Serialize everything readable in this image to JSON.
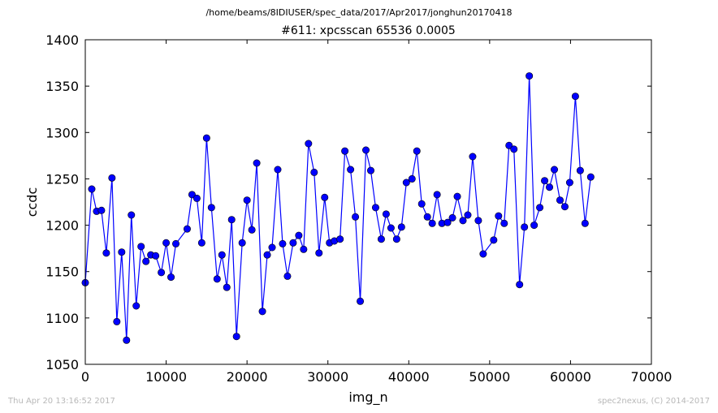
{
  "header": {
    "path": "/home/beams/8IDIUSER/spec_data/2017/Apr2017/jonghun20170418"
  },
  "footer": {
    "timestamp": "Thu Apr 20 13:16:52 2017",
    "credit": "spec2nexus, (C) 2014-2017"
  },
  "chart_data": {
    "type": "line",
    "title": "#611: xpcsscan 65536 0.0005",
    "xlabel": "img_n",
    "ylabel": "ccdc",
    "xlim": [
      0,
      70000
    ],
    "ylim": [
      1050,
      1400
    ],
    "xticks": [
      0,
      10000,
      20000,
      30000,
      40000,
      50000,
      60000,
      70000
    ],
    "yticks": [
      1050,
      1100,
      1150,
      1200,
      1250,
      1300,
      1350,
      1400
    ],
    "grid": false,
    "legend": "none",
    "colors": {
      "line": "#0000ff",
      "marker": "#0000ff",
      "marker_edge": "#000000"
    },
    "series": [
      {
        "points": [
          [
            0,
            1138
          ],
          [
            800,
            1239
          ],
          [
            1400,
            1215
          ],
          [
            2000,
            1216
          ],
          [
            2600,
            1170
          ],
          [
            3300,
            1251
          ],
          [
            3900,
            1096
          ],
          [
            4500,
            1171
          ],
          [
            5100,
            1076
          ],
          [
            5700,
            1211
          ],
          [
            6300,
            1113
          ],
          [
            6900,
            1177
          ],
          [
            7500,
            1161
          ],
          [
            8100,
            1168
          ],
          [
            8700,
            1167
          ],
          [
            9400,
            1149
          ],
          [
            10000,
            1181
          ],
          [
            10600,
            1144
          ],
          [
            11200,
            1180
          ],
          [
            12600,
            1196
          ],
          [
            13200,
            1233
          ],
          [
            13800,
            1229
          ],
          [
            14400,
            1181
          ],
          [
            15000,
            1294
          ],
          [
            15600,
            1219
          ],
          [
            16300,
            1142
          ],
          [
            16900,
            1168
          ],
          [
            17500,
            1133
          ],
          [
            18100,
            1206
          ],
          [
            18700,
            1080
          ],
          [
            19400,
            1181
          ],
          [
            20000,
            1227
          ],
          [
            20600,
            1195
          ],
          [
            21200,
            1267
          ],
          [
            21900,
            1107
          ],
          [
            22500,
            1168
          ],
          [
            23100,
            1176
          ],
          [
            23800,
            1260
          ],
          [
            24400,
            1180
          ],
          [
            25000,
            1145
          ],
          [
            25700,
            1181
          ],
          [
            26400,
            1189
          ],
          [
            27000,
            1174
          ],
          [
            27600,
            1288
          ],
          [
            28300,
            1257
          ],
          [
            28900,
            1170
          ],
          [
            29600,
            1230
          ],
          [
            30200,
            1181
          ],
          [
            30800,
            1183
          ],
          [
            31500,
            1185
          ],
          [
            32100,
            1280
          ],
          [
            32800,
            1260
          ],
          [
            33400,
            1209
          ],
          [
            34000,
            1118
          ],
          [
            34700,
            1281
          ],
          [
            35300,
            1259
          ],
          [
            35900,
            1219
          ],
          [
            36600,
            1185
          ],
          [
            37200,
            1212
          ],
          [
            37800,
            1197
          ],
          [
            38500,
            1185
          ],
          [
            39100,
            1198
          ],
          [
            39700,
            1246
          ],
          [
            40400,
            1250
          ],
          [
            41000,
            1280
          ],
          [
            41600,
            1223
          ],
          [
            42300,
            1209
          ],
          [
            42900,
            1202
          ],
          [
            43500,
            1233
          ],
          [
            44100,
            1202
          ],
          [
            44800,
            1203
          ],
          [
            45400,
            1208
          ],
          [
            46000,
            1231
          ],
          [
            46700,
            1205
          ],
          [
            47300,
            1211
          ],
          [
            47900,
            1274
          ],
          [
            48600,
            1205
          ],
          [
            49200,
            1169
          ],
          [
            50500,
            1184
          ],
          [
            51100,
            1210
          ],
          [
            51800,
            1202
          ],
          [
            52400,
            1286
          ],
          [
            53000,
            1282
          ],
          [
            53700,
            1136
          ],
          [
            54300,
            1198
          ],
          [
            54900,
            1361
          ],
          [
            55500,
            1200
          ],
          [
            56200,
            1219
          ],
          [
            56800,
            1248
          ],
          [
            57400,
            1241
          ],
          [
            58000,
            1260
          ],
          [
            58700,
            1227
          ],
          [
            59300,
            1220
          ],
          [
            59900,
            1246
          ],
          [
            60600,
            1339
          ],
          [
            61200,
            1259
          ],
          [
            61800,
            1202
          ],
          [
            62500,
            1252
          ]
        ]
      }
    ]
  }
}
